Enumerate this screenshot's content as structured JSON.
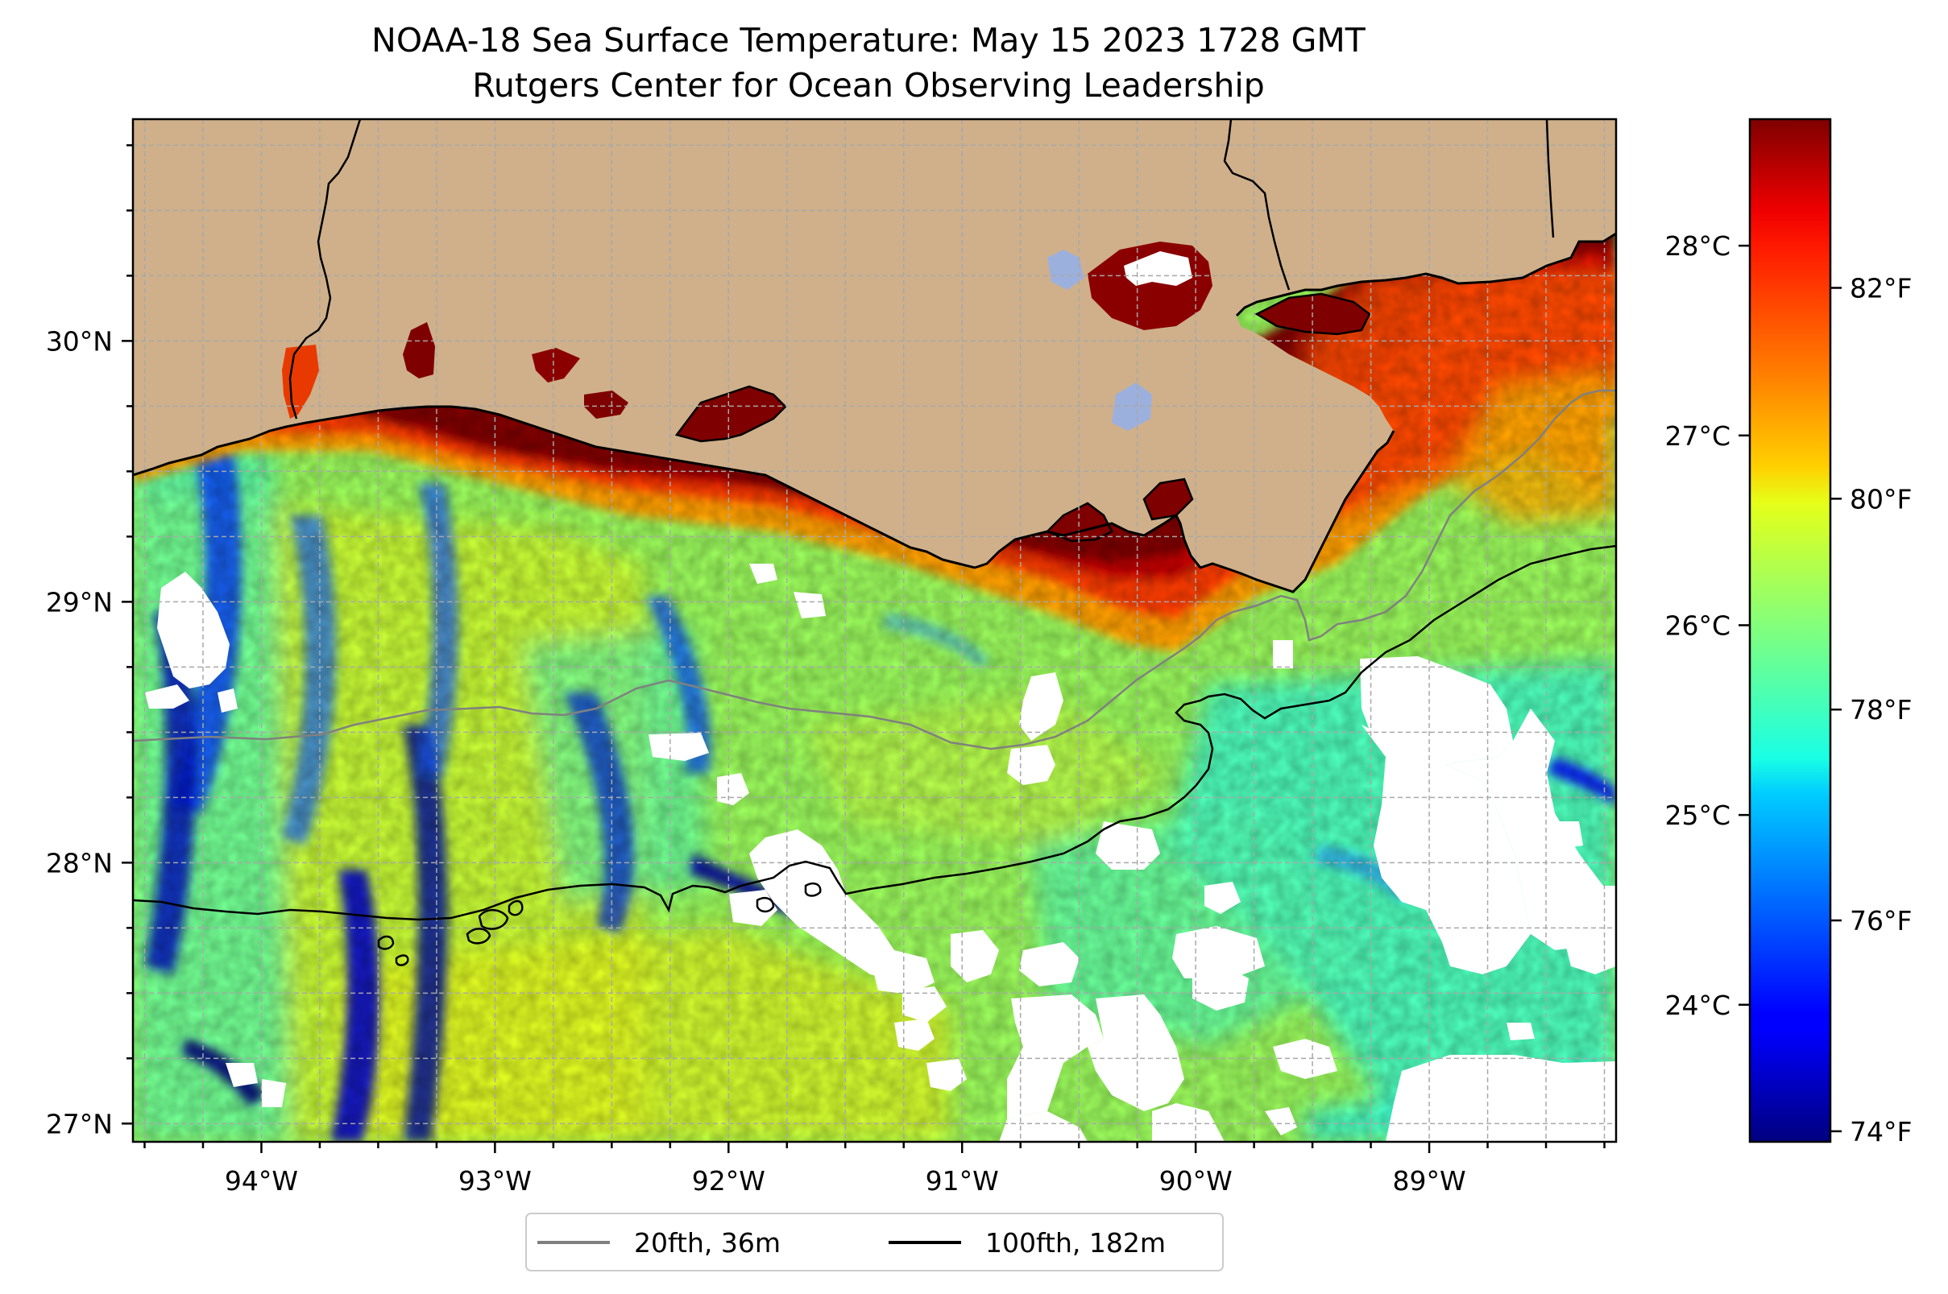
{
  "title": {
    "line1": "NOAA-18 Sea Surface Temperature: May 15 2023 1728 GMT",
    "line2": "Rutgers Center for Ocean Observing Leadership"
  },
  "map": {
    "lon_range": [
      -94.55,
      -88.2
    ],
    "lat_range": [
      26.93,
      30.85
    ],
    "colors": {
      "land": "#cfb08a",
      "lake": "#9cb0de",
      "cloud_mask": "#ffffff",
      "gridline": "#a8a8a8"
    },
    "x_ticks": [
      {
        "lon": -94,
        "label": "94°W"
      },
      {
        "lon": -93,
        "label": "93°W"
      },
      {
        "lon": -92,
        "label": "92°W"
      },
      {
        "lon": -91,
        "label": "91°W"
      },
      {
        "lon": -90,
        "label": "90°W"
      },
      {
        "lon": -89,
        "label": "89°W"
      }
    ],
    "y_ticks": [
      {
        "lat": 30,
        "label": "30°N"
      },
      {
        "lat": 29,
        "label": "29°N"
      },
      {
        "lat": 28,
        "label": "28°N"
      },
      {
        "lat": 27,
        "label": "27°N"
      }
    ]
  },
  "legend": {
    "items": [
      {
        "label": "20fth, 36m",
        "color": "#808080"
      },
      {
        "label": "100fth, 182m",
        "color": "#000000"
      }
    ]
  },
  "colorbar": {
    "colormap": "jet",
    "range_f": [
      73.9,
      83.6
    ],
    "celsius_ticks": [
      {
        "value": 28,
        "label": "28°C"
      },
      {
        "value": 27,
        "label": "27°C"
      },
      {
        "value": 26,
        "label": "26°C"
      },
      {
        "value": 25,
        "label": "25°C"
      },
      {
        "value": 24,
        "label": "24°C"
      }
    ],
    "fahrenheit_ticks": [
      {
        "value": 82,
        "label": "82°F"
      },
      {
        "value": 80,
        "label": "80°F"
      },
      {
        "value": 78,
        "label": "78°F"
      },
      {
        "value": 76,
        "label": "76°F"
      },
      {
        "value": 74,
        "label": "74°F"
      }
    ],
    "jet_stops": [
      "#00007f",
      "#0000ff",
      "#007fff",
      "#19ffe5",
      "#7fff7f",
      "#e5ff19",
      "#ff7f00",
      "#ff1900",
      "#7f0000"
    ]
  }
}
